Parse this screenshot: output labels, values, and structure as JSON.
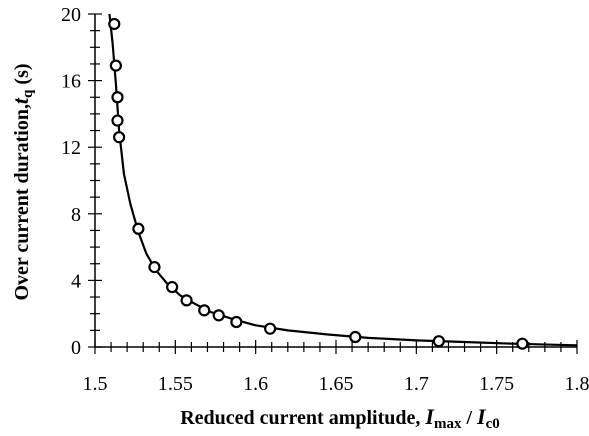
{
  "chart_data": {
    "type": "scatter",
    "title": "",
    "xlabel": {
      "prefix": "Reduced current amplitude, ",
      "var1": "I",
      "sub1": "max",
      "sep": " / ",
      "var2": "I",
      "sub2": "c0"
    },
    "ylabel": {
      "prefix": "Over current duration,",
      "var": "t",
      "sub": "q",
      "unit": " (s)"
    },
    "xlim": [
      1.5,
      1.8
    ],
    "ylim": [
      0,
      20
    ],
    "x_ticks": [
      1.5,
      1.55,
      1.6,
      1.65,
      1.7,
      1.75,
      1.8
    ],
    "x_tick_labels": [
      "1.5",
      "1.55",
      "1.6",
      "1.65",
      "1.7",
      "1.75",
      "1.8"
    ],
    "y_ticks": [
      0,
      4,
      8,
      12,
      16,
      20
    ],
    "y_tick_labels": [
      "0",
      "4",
      "8",
      "12",
      "16",
      "20"
    ],
    "grid": false,
    "legend": "none",
    "series": [
      {
        "marker": "open-circle",
        "x": [
          1.512,
          1.513,
          1.514,
          1.514,
          1.515,
          1.527,
          1.537,
          1.548,
          1.557,
          1.568,
          1.577,
          1.588,
          1.609,
          1.662,
          1.714,
          1.766
        ],
        "y": [
          19.4,
          16.9,
          15.0,
          13.6,
          12.6,
          7.1,
          4.8,
          3.6,
          2.8,
          2.2,
          1.9,
          1.5,
          1.1,
          0.6,
          0.35,
          0.2
        ]
      }
    ],
    "fit_curve": {
      "x": [
        1.509,
        1.511,
        1.513,
        1.515,
        1.518,
        1.522,
        1.527,
        1.532,
        1.538,
        1.545,
        1.553,
        1.562,
        1.572,
        1.585,
        1.6,
        1.62,
        1.645,
        1.67,
        1.7,
        1.73,
        1.76,
        1.8
      ],
      "y": [
        20.0,
        18.2,
        15.8,
        13.0,
        10.4,
        8.6,
        6.9,
        5.6,
        4.6,
        3.8,
        3.1,
        2.6,
        2.1,
        1.7,
        1.3,
        1.0,
        0.75,
        0.55,
        0.4,
        0.3,
        0.2,
        0.1
      ]
    }
  }
}
